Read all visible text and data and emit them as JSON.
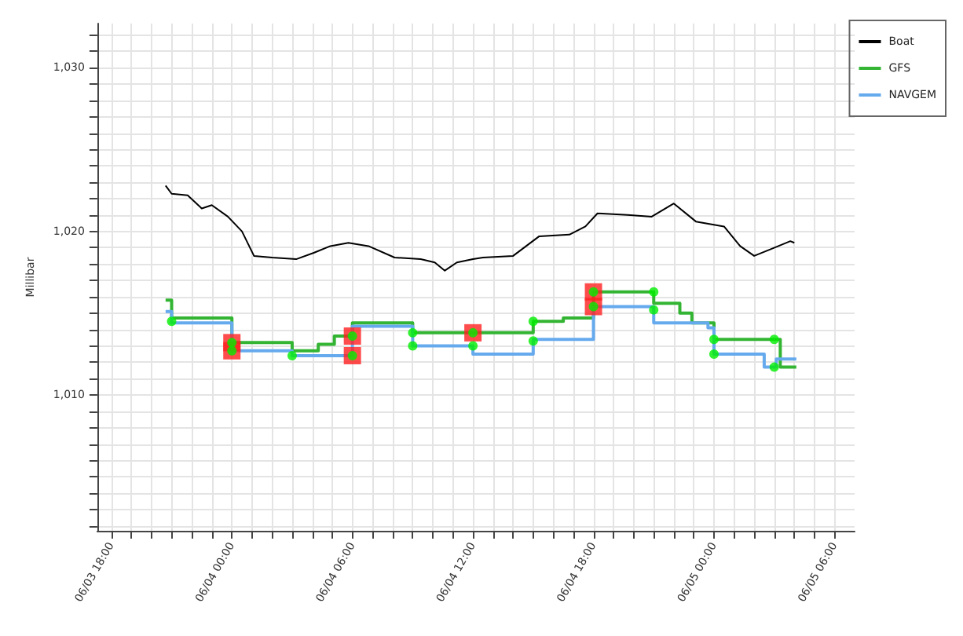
{
  "chart_data": {
    "type": "line",
    "ylabel": "Millibar",
    "legend": "top right",
    "grid": true,
    "marker": "none",
    "xlim": [
      "--06-03T17:18",
      "--06-05T07:00"
    ],
    "ylim": [
      1001.7,
      1032.7
    ],
    "xticks": [
      {
        "value": "--06-03T18:00",
        "label": "06/03 18:00"
      },
      {
        "value": "--06-03T19:00",
        "label": null
      },
      {
        "value": "--06-03T20:00",
        "label": null
      },
      {
        "value": "--06-03T21:00",
        "label": null
      },
      {
        "value": "--06-03T22:00",
        "label": null
      },
      {
        "value": "--06-03T23:00",
        "label": null
      },
      {
        "value": "--06-04T00:00",
        "label": "06/04 00:00"
      },
      {
        "value": "--06-04T01:00",
        "label": null
      },
      {
        "value": "--06-04T02:00",
        "label": null
      },
      {
        "value": "--06-04T03:00",
        "label": null
      },
      {
        "value": "--06-04T04:00",
        "label": null
      },
      {
        "value": "--06-04T05:00",
        "label": null
      },
      {
        "value": "--06-04T06:00",
        "label": "06/04 06:00"
      },
      {
        "value": "--06-04T07:00",
        "label": null
      },
      {
        "value": "--06-04T08:00",
        "label": null
      },
      {
        "value": "--06-04T09:00",
        "label": null
      },
      {
        "value": "--06-04T10:00",
        "label": null
      },
      {
        "value": "--06-04T11:00",
        "label": null
      },
      {
        "value": "--06-04T12:00",
        "label": "06/04 12:00"
      },
      {
        "value": "--06-04T13:00",
        "label": null
      },
      {
        "value": "--06-04T14:00",
        "label": null
      },
      {
        "value": "--06-04T15:00",
        "label": null
      },
      {
        "value": "--06-04T16:00",
        "label": null
      },
      {
        "value": "--06-04T17:00",
        "label": null
      },
      {
        "value": "--06-04T18:00",
        "label": "06/04 18:00"
      },
      {
        "value": "--06-04T19:00",
        "label": null
      },
      {
        "value": "--06-04T20:00",
        "label": null
      },
      {
        "value": "--06-04T21:00",
        "label": null
      },
      {
        "value": "--06-04T22:00",
        "label": null
      },
      {
        "value": "--06-04T23:00",
        "label": null
      },
      {
        "value": "--06-05T00:00",
        "label": "06/05 00:00"
      },
      {
        "value": "--06-05T01:00",
        "label": null
      },
      {
        "value": "--06-05T02:00",
        "label": null
      },
      {
        "value": "--06-05T03:00",
        "label": null
      },
      {
        "value": "--06-05T04:00",
        "label": null
      },
      {
        "value": "--06-05T05:00",
        "label": null
      },
      {
        "value": "--06-05T06:00",
        "label": "06/05 06:00"
      }
    ],
    "yticks": [
      {
        "value": 1002,
        "label": null
      },
      {
        "value": 1003,
        "label": null
      },
      {
        "value": 1004,
        "label": null
      },
      {
        "value": 1005,
        "label": null
      },
      {
        "value": 1006,
        "label": null
      },
      {
        "value": 1007,
        "label": null
      },
      {
        "value": 1008,
        "label": null
      },
      {
        "value": 1009,
        "label": null
      },
      {
        "value": 1010,
        "label": "1,010"
      },
      {
        "value": 1011,
        "label": null
      },
      {
        "value": 1012,
        "label": null
      },
      {
        "value": 1013,
        "label": null
      },
      {
        "value": 1014,
        "label": null
      },
      {
        "value": 1015,
        "label": null
      },
      {
        "value": 1016,
        "label": null
      },
      {
        "value": 1017,
        "label": null
      },
      {
        "value": 1018,
        "label": null
      },
      {
        "value": 1019,
        "label": null
      },
      {
        "value": 1020,
        "label": "1,020"
      },
      {
        "value": 1021,
        "label": null
      },
      {
        "value": 1022,
        "label": null
      },
      {
        "value": 1023,
        "label": null
      },
      {
        "value": 1024,
        "label": null
      },
      {
        "value": 1025,
        "label": null
      },
      {
        "value": 1026,
        "label": null
      },
      {
        "value": 1027,
        "label": null
      },
      {
        "value": 1028,
        "label": null
      },
      {
        "value": 1029,
        "label": null
      },
      {
        "value": 1030,
        "label": "1,030"
      },
      {
        "value": 1031,
        "label": null
      },
      {
        "value": 1032,
        "label": null
      }
    ],
    "series": [
      {
        "name": "Boat",
        "color": "#000000",
        "x": [
          "--06-03T20:42",
          "--06-03T21:00",
          "--06-03T21:48",
          "--06-03T22:30",
          "--06-03T23:00",
          "--06-03T23:48",
          "--06-04T00:30",
          "--06-04T01:06",
          "--06-04T02:00",
          "--06-04T03:12",
          "--06-04T04:06",
          "--06-04T04:54",
          "--06-04T05:48",
          "--06-04T06:48",
          "--06-04T08:06",
          "--06-04T09:24",
          "--06-04T10:06",
          "--06-04T10:36",
          "--06-04T11:12",
          "--06-04T12:00",
          "--06-04T12:30",
          "--06-04T14:00",
          "--06-04T15:18",
          "--06-04T16:48",
          "--06-04T17:36",
          "--06-04T18:12",
          "--06-04T19:42",
          "--06-04T20:54",
          "--06-04T22:00",
          "--06-04T23:06",
          "--06-05T00:30",
          "--06-05T01:18",
          "--06-05T02:00",
          "--06-05T02:48",
          "--06-05T03:48",
          "--06-05T04:00"
        ],
        "values": [
          1022.8,
          1022.3,
          1022.2,
          1021.4,
          1021.6,
          1020.9,
          1020.0,
          1018.5,
          1018.4,
          1018.3,
          1018.7,
          1019.1,
          1019.3,
          1019.1,
          1018.4,
          1018.3,
          1018.1,
          1017.6,
          1018.1,
          1018.3,
          1018.4,
          1018.5,
          1019.7,
          1019.8,
          1020.3,
          1021.1,
          1021.0,
          1020.9,
          1021.7,
          1020.6,
          1020.3,
          1019.1,
          1018.5,
          1018.9,
          1019.4,
          1019.3
        ]
      },
      {
        "name": "GFS",
        "type": "step",
        "color": "#33b533",
        "x": [
          "--06-03T20:42",
          "--06-03T21:00",
          "--06-04T00:00",
          "--06-04T03:00",
          "--06-04T04:18",
          "--06-04T05:06",
          "--06-04T06:00",
          "--06-04T09:00",
          "--06-04T15:00",
          "--06-04T16:30",
          "--06-04T18:00",
          "--06-04T21:00",
          "--06-04T22:18",
          "--06-04T22:54",
          "--06-05T00:00",
          "--06-05T03:18",
          "--06-05T04:06"
        ],
        "values": [
          1015.8,
          1014.7,
          1013.2,
          1012.7,
          1013.1,
          1013.6,
          1014.4,
          1013.8,
          1014.5,
          1014.7,
          1016.3,
          1015.6,
          1015.0,
          1014.4,
          1013.4,
          1011.7,
          1011.7
        ]
      },
      {
        "name": "NAVGEM",
        "type": "step",
        "color": "#66aaee",
        "x": [
          "--06-03T20:42",
          "--06-03T21:00",
          "--06-04T00:00",
          "--06-04T03:00",
          "--06-04T06:00",
          "--06-04T09:00",
          "--06-04T12:00",
          "--06-04T15:00",
          "--06-04T18:00",
          "--06-04T21:00",
          "--06-04T23:42",
          "--06-05T00:00",
          "--06-05T02:30",
          "--06-05T03:06",
          "--06-05T04:06"
        ],
        "values": [
          1015.1,
          1014.4,
          1012.7,
          1012.4,
          1014.2,
          1013.0,
          1012.5,
          1013.4,
          1015.4,
          1014.4,
          1014.1,
          1012.5,
          1011.7,
          1012.2,
          1012.2
        ]
      },
      {
        "type": "scatter",
        "marker": "square",
        "color": "#ff2020",
        "x": [
          "--06-04T00:00",
          "--06-04T00:00",
          "--06-04T06:00",
          "--06-04T06:00",
          "--06-04T12:00",
          "--06-04T18:00",
          "--06-04T18:00"
        ],
        "values": [
          1013.2,
          1012.7,
          1013.6,
          1012.4,
          1013.8,
          1016.3,
          1015.4
        ]
      },
      {
        "type": "scatter",
        "marker": "circle",
        "color": "#00ee00",
        "x": [
          "--06-03T21:00",
          "--06-04T00:00",
          "--06-04T00:00",
          "--06-04T03:00",
          "--06-04T06:00",
          "--06-04T06:00",
          "--06-04T09:00",
          "--06-04T09:00",
          "--06-04T12:00",
          "--06-04T12:00",
          "--06-04T15:00",
          "--06-04T15:00",
          "--06-04T18:00",
          "--06-04T18:00",
          "--06-04T21:00",
          "--06-04T21:00",
          "--06-05T00:00",
          "--06-05T00:00",
          "--06-05T03:00",
          "--06-05T03:00"
        ],
        "values": [
          1014.5,
          1013.2,
          1012.7,
          1012.4,
          1013.6,
          1012.4,
          1013.8,
          1013.0,
          1013.8,
          1013.0,
          1014.5,
          1013.3,
          1016.3,
          1015.4,
          1016.3,
          1015.2,
          1013.4,
          1012.5,
          1013.4,
          1011.7
        ]
      }
    ]
  }
}
